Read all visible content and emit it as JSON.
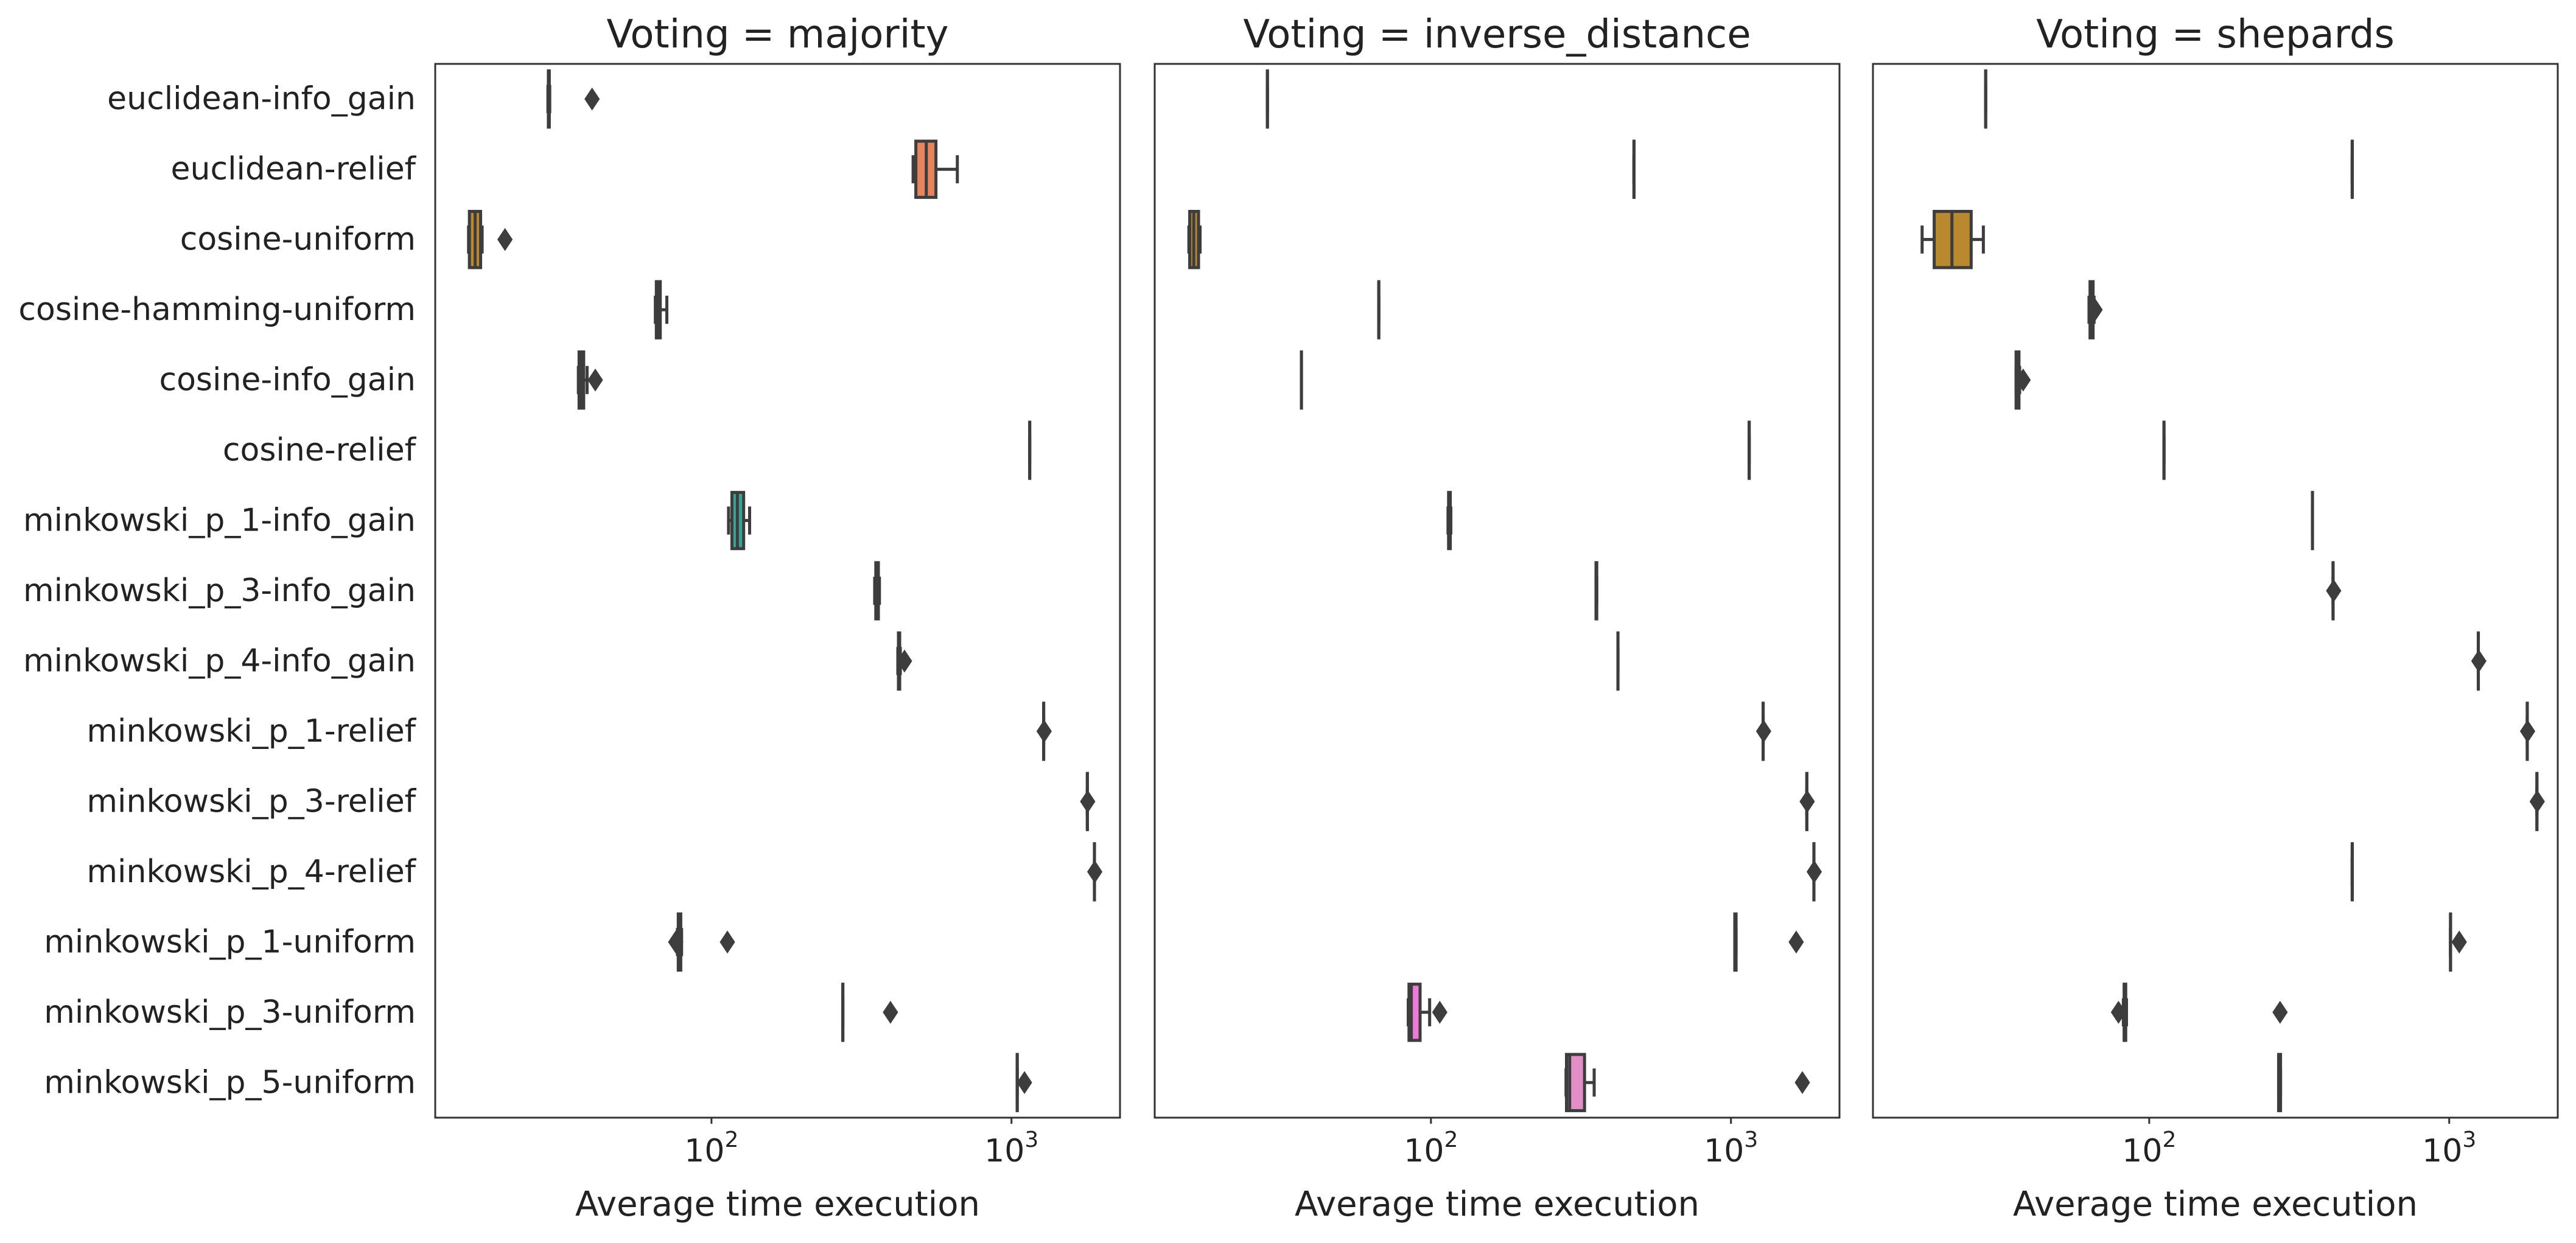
{
  "chart_data": {
    "type": "boxplot",
    "orientation": "horizontal",
    "x_scale": "log",
    "xlim": [
      12,
      2300
    ],
    "xticks": [
      {
        "value": 100,
        "base": "10",
        "exp": "2"
      },
      {
        "value": 1000,
        "base": "10",
        "exp": "3"
      }
    ],
    "xlabel": "Average time execution",
    "grid": false,
    "legend": "none",
    "categories": [
      "euclidean-info_gain",
      "euclidean-relief",
      "cosine-uniform",
      "cosine-hamming-uniform",
      "cosine-info_gain",
      "cosine-relief",
      "minkowski_p_1-info_gain",
      "minkowski_p_3-info_gain",
      "minkowski_p_4-info_gain",
      "minkowski_p_1-relief",
      "minkowski_p_3-relief",
      "minkowski_p_4-relief",
      "minkowski_p_1-uniform",
      "minkowski_p_3-uniform",
      "minkowski_p_5-uniform"
    ],
    "colors": [
      "#3b8fc9",
      "#e5845e",
      "#b8892f",
      "#8f9c32",
      "#49a137",
      "#38a47f",
      "#3aa397",
      "#39a2b2",
      "#3d9bd0",
      "#8a8edd",
      "#c17bdc",
      "#e670ce",
      "#ea7198",
      "#ee79d6",
      "#e38fc7"
    ],
    "panels": [
      {
        "title": "Voting = majority",
        "boxes": [
          {
            "whislo": 28.5,
            "q1": 28.6,
            "med": 28.7,
            "q3": 28.8,
            "whishi": 28.9,
            "fliers": [
              40
            ]
          },
          {
            "whislo": 470,
            "q1": 480,
            "med": 520,
            "q3": 560,
            "whishi": 660,
            "fliers": []
          },
          {
            "whislo": 15.5,
            "q1": 15.6,
            "med": 16.3,
            "q3": 17.0,
            "whishi": 17.2,
            "fliers": [
              20.5
            ]
          },
          {
            "whislo": 65,
            "q1": 65.5,
            "med": 66,
            "q3": 67.5,
            "whishi": 71,
            "fliers": []
          },
          {
            "whislo": 36,
            "q1": 36.2,
            "med": 37,
            "q3": 37.5,
            "whishi": 38.5,
            "fliers": [
              41
            ]
          },
          {
            "whislo": 1150,
            "q1": 1150,
            "med": 1150,
            "q3": 1150,
            "whishi": 1150,
            "fliers": []
          },
          {
            "whislo": 114,
            "q1": 117,
            "med": 122,
            "q3": 128,
            "whishi": 134,
            "fliers": []
          },
          {
            "whislo": 350,
            "q1": 353,
            "med": 356,
            "q3": 360,
            "whishi": 363,
            "fliers": []
          },
          {
            "whislo": 418,
            "q1": 420,
            "med": 422,
            "q3": 424,
            "whishi": 426,
            "fliers": [
              440
            ]
          },
          {
            "whislo": 1280,
            "q1": 1280,
            "med": 1280,
            "q3": 1280,
            "whishi": 1280,
            "fliers": [
              1285
            ]
          },
          {
            "whislo": 1790,
            "q1": 1790,
            "med": 1790,
            "q3": 1790,
            "whishi": 1790,
            "fliers": [
              1795
            ]
          },
          {
            "whislo": 1890,
            "q1": 1890,
            "med": 1890,
            "q3": 1890,
            "whishi": 1890,
            "fliers": [
              1895
            ]
          },
          {
            "whislo": 77,
            "q1": 77.5,
            "med": 78,
            "q3": 79,
            "whishi": 79.5,
            "fliers": [
              76,
              113
            ]
          },
          {
            "whislo": 274,
            "q1": 274,
            "med": 274,
            "q3": 274,
            "whishi": 274,
            "fliers": [
              395
            ]
          },
          {
            "whislo": 1045,
            "q1": 1045,
            "med": 1045,
            "q3": 1045,
            "whishi": 1045,
            "fliers": [
              1105
            ]
          }
        ]
      },
      {
        "title": "Voting = inverse_distance",
        "boxes": [
          {
            "whislo": 28.5,
            "q1": 28.5,
            "med": 28.5,
            "q3": 28.5,
            "whishi": 28.5,
            "fliers": []
          },
          {
            "whislo": 475,
            "q1": 475,
            "med": 475,
            "q3": 475,
            "whishi": 475,
            "fliers": []
          },
          {
            "whislo": 15.6,
            "q1": 15.7,
            "med": 16.2,
            "q3": 16.8,
            "whishi": 17.0,
            "fliers": []
          },
          {
            "whislo": 67,
            "q1": 67,
            "med": 67,
            "q3": 67,
            "whishi": 67,
            "fliers": []
          },
          {
            "whislo": 37,
            "q1": 37,
            "med": 37,
            "q3": 37,
            "whishi": 37,
            "fliers": []
          },
          {
            "whislo": 1150,
            "q1": 1150,
            "med": 1150,
            "q3": 1150,
            "whishi": 1150,
            "fliers": []
          },
          {
            "whislo": 114,
            "q1": 114.5,
            "med": 115,
            "q3": 116,
            "whishi": 116.5,
            "fliers": []
          },
          {
            "whislo": 355,
            "q1": 355,
            "med": 356,
            "q3": 357,
            "whishi": 357,
            "fliers": []
          },
          {
            "whislo": 420,
            "q1": 420,
            "med": 420,
            "q3": 420,
            "whishi": 420,
            "fliers": []
          },
          {
            "whislo": 1280,
            "q1": 1280,
            "med": 1280,
            "q3": 1280,
            "whishi": 1280,
            "fliers": [
              1285
            ]
          },
          {
            "whislo": 1790,
            "q1": 1790,
            "med": 1790,
            "q3": 1790,
            "whishi": 1790,
            "fliers": [
              1795
            ]
          },
          {
            "whislo": 1890,
            "q1": 1890,
            "med": 1890,
            "q3": 1890,
            "whishi": 1890,
            "fliers": [
              1895
            ]
          },
          {
            "whislo": 1030,
            "q1": 1030,
            "med": 1035,
            "q3": 1040,
            "whishi": 1040,
            "fliers": [
              1650
            ]
          },
          {
            "whislo": 84,
            "q1": 84.5,
            "med": 86,
            "q3": 92,
            "whishi": 99,
            "fliers": [
              107
            ]
          },
          {
            "whislo": 282,
            "q1": 283,
            "med": 290,
            "q3": 325,
            "whishi": 350,
            "fliers": [
              1730
            ]
          }
        ]
      },
      {
        "title": "Voting = shepards",
        "boxes": [
          {
            "whislo": 28.5,
            "q1": 28.5,
            "med": 28.5,
            "q3": 28.5,
            "whishi": 28.5,
            "fliers": []
          },
          {
            "whislo": 475,
            "q1": 475,
            "med": 475,
            "q3": 475,
            "whishi": 475,
            "fliers": []
          },
          {
            "whislo": 17.5,
            "q1": 19.2,
            "med": 22.0,
            "q3": 25.5,
            "whishi": 28.0,
            "fliers": []
          },
          {
            "whislo": 63,
            "q1": 63.5,
            "med": 64,
            "q3": 65,
            "whishi": 65.5,
            "fliers": [
              66
            ]
          },
          {
            "whislo": 36,
            "q1": 36,
            "med": 36.5,
            "q3": 36.8,
            "whishi": 37,
            "fliers": [
              38
            ]
          },
          {
            "whislo": 112,
            "q1": 112,
            "med": 112,
            "q3": 112,
            "whishi": 112,
            "fliers": []
          },
          {
            "whislo": 350,
            "q1": 350,
            "med": 350,
            "q3": 350,
            "whishi": 350,
            "fliers": []
          },
          {
            "whislo": 410,
            "q1": 410,
            "med": 410,
            "q3": 410,
            "whishi": 410,
            "fliers": [
              412
            ]
          },
          {
            "whislo": 1250,
            "q1": 1250,
            "med": 1250,
            "q3": 1250,
            "whishi": 1250,
            "fliers": [
              1255
            ]
          },
          {
            "whislo": 1820,
            "q1": 1820,
            "med": 1820,
            "q3": 1820,
            "whishi": 1820,
            "fliers": [
              1825
            ]
          },
          {
            "whislo": 1960,
            "q1": 1960,
            "med": 1960,
            "q3": 1960,
            "whishi": 1960,
            "fliers": [
              1965
            ]
          },
          {
            "whislo": 475,
            "q1": 475,
            "med": 475,
            "q3": 475,
            "whishi": 475,
            "fliers": []
          },
          {
            "whislo": 1010,
            "q1": 1010,
            "med": 1010,
            "q3": 1010,
            "whishi": 1010,
            "fliers": [
              1080
            ]
          },
          {
            "whislo": 82,
            "q1": 82.5,
            "med": 83,
            "q3": 83.5,
            "whishi": 84,
            "fliers": [
              79,
              273
            ]
          },
          {
            "whislo": 270,
            "q1": 270,
            "med": 272,
            "q3": 274,
            "whishi": 274,
            "fliers": []
          }
        ]
      }
    ]
  }
}
